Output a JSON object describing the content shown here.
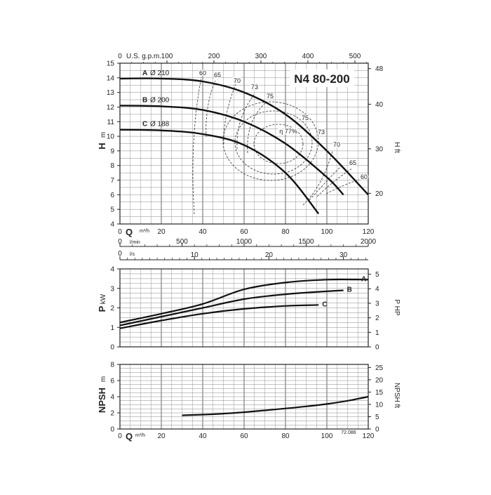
{
  "chart_data": [
    {
      "type": "line",
      "title": "N4 80-200",
      "xlabel": "Q",
      "xunit": "m³/h",
      "xlim": [
        0,
        120
      ],
      "x_ticks": [
        20,
        40,
        60,
        80,
        100,
        120
      ],
      "ylabel": "H",
      "yunit": "m",
      "ylim": [
        4,
        15
      ],
      "y_ticks": [
        4,
        5,
        6,
        7,
        8,
        9,
        10,
        11,
        12,
        13,
        14,
        15
      ],
      "y2label": "H",
      "y2unit": "ft",
      "y2_ticks": [
        20,
        30,
        40,
        48
      ],
      "top_axis": {
        "label": "U.S. g.p.m.",
        "zero": "0",
        "ticks": [
          100,
          200,
          300,
          400,
          500
        ]
      },
      "lmin_axis": {
        "label": "l/min",
        "zero": "0",
        "ticks": [
          500,
          1000,
          1500,
          2000
        ]
      },
      "ls_axis": {
        "label": "l/s",
        "zero": "0",
        "ticks": [
          10,
          20,
          30
        ]
      },
      "grid": true,
      "series": [
        {
          "name": "A",
          "dia": "Ø 210",
          "x": [
            0,
            20,
            40,
            60,
            80,
            100,
            120
          ],
          "y": [
            13.95,
            13.95,
            13.75,
            13.0,
            11.5,
            9.0,
            6.0
          ]
        },
        {
          "name": "B",
          "dia": "Ø 200",
          "x": [
            0,
            20,
            40,
            60,
            80,
            100,
            108
          ],
          "y": [
            12.1,
            12.05,
            11.8,
            11.0,
            9.5,
            7.2,
            6.0
          ]
        },
        {
          "name": "C",
          "dia": "Ø 188",
          "x": [
            0,
            20,
            40,
            60,
            80,
            96
          ],
          "y": [
            10.45,
            10.4,
            10.15,
            9.4,
            7.5,
            4.7
          ]
        }
      ],
      "efficiency_labels": [
        "60",
        "65",
        "70",
        "73",
        "75",
        "η 77%",
        "75",
        "73",
        "70",
        "65",
        "60"
      ]
    },
    {
      "type": "line",
      "ylabel": "P",
      "yunit": "kW",
      "ylim": [
        0,
        4
      ],
      "y_ticks": [
        0,
        1,
        2,
        3,
        4
      ],
      "y2label": "P",
      "y2unit": "HP",
      "y2_ticks": [
        0,
        1,
        2,
        3,
        4,
        5
      ],
      "xlim": [
        0,
        120
      ],
      "grid": true,
      "series": [
        {
          "name": "A",
          "x": [
            0,
            20,
            40,
            60,
            80,
            100,
            120
          ],
          "y": [
            1.25,
            1.7,
            2.2,
            2.95,
            3.3,
            3.45,
            3.45
          ]
        },
        {
          "name": "B",
          "x": [
            0,
            20,
            40,
            60,
            80,
            100,
            108
          ],
          "y": [
            1.1,
            1.55,
            2.0,
            2.45,
            2.7,
            2.85,
            2.9
          ]
        },
        {
          "name": "C",
          "x": [
            0,
            20,
            40,
            60,
            80,
            96
          ],
          "y": [
            0.95,
            1.35,
            1.7,
            1.95,
            2.1,
            2.15
          ]
        }
      ]
    },
    {
      "type": "line",
      "ylabel": "NPSH",
      "yunit": "m",
      "ylim": [
        0,
        8
      ],
      "y_ticks": [
        0,
        2,
        4,
        6,
        8
      ],
      "y2label": "NPSH",
      "y2unit": "ft",
      "y2_ticks": [
        0,
        5,
        10,
        15,
        20,
        25
      ],
      "xlabel": "Q",
      "xunit": "m³/h",
      "xlim": [
        0,
        120
      ],
      "x_ticks": [
        20,
        40,
        60,
        80,
        100,
        120
      ],
      "x_zero": "0",
      "grid": true,
      "series": [
        {
          "name": "",
          "x": [
            30,
            50,
            70,
            90,
            100,
            110,
            120
          ],
          "y": [
            1.7,
            1.9,
            2.3,
            2.8,
            3.1,
            3.5,
            4.0
          ]
        }
      ],
      "code": "72.086"
    }
  ]
}
